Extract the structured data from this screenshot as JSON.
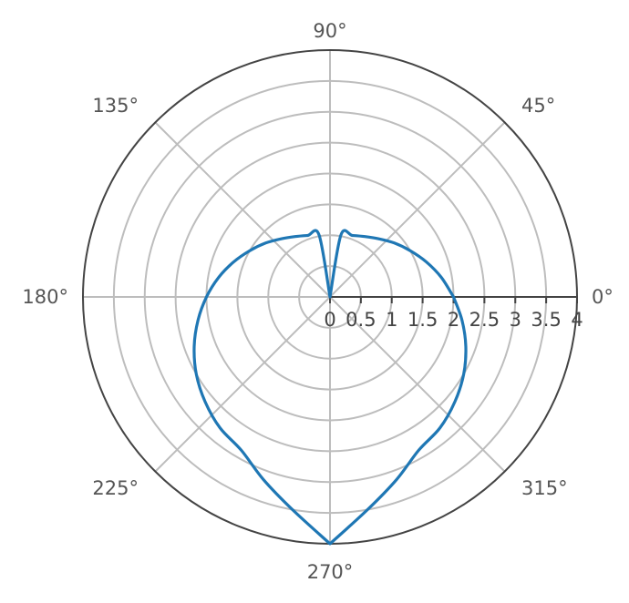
{
  "chart_data": {
    "type": "line",
    "projection": "polar",
    "angle_unit": "degrees",
    "angular_ticks": [
      {
        "angle": 0,
        "label": "0°"
      },
      {
        "angle": 45,
        "label": "45°"
      },
      {
        "angle": 90,
        "label": "90°"
      },
      {
        "angle": 135,
        "label": "135°"
      },
      {
        "angle": 180,
        "label": "180°"
      },
      {
        "angle": 225,
        "label": "225°"
      },
      {
        "angle": 270,
        "label": "270°"
      },
      {
        "angle": 315,
        "label": "315°"
      }
    ],
    "radial_ticks": [
      0,
      0.5,
      1,
      1.5,
      2,
      2.5,
      3,
      3.5,
      4
    ],
    "radial_tick_labels": [
      "0",
      "0.5",
      "1",
      "1.5",
      "2",
      "2.5",
      "3",
      "3.5",
      "4"
    ],
    "rlim": [
      0,
      4
    ],
    "grid": true,
    "legend": false,
    "series": [
      {
        "color": "#1f77b4",
        "theta": [
          0,
          10,
          20,
          30,
          40,
          50,
          60,
          70,
          80,
          90,
          100,
          110,
          120,
          130,
          140,
          150,
          160,
          170,
          180,
          190,
          200,
          210,
          220,
          230,
          240,
          250,
          260,
          270,
          280,
          290,
          300,
          310,
          320,
          330,
          340,
          350,
          360
        ],
        "r": [
          2.0,
          1.83,
          1.66,
          1.5,
          1.36,
          1.23,
          1.13,
          1.06,
          1.02,
          0.0,
          1.02,
          1.06,
          1.13,
          1.23,
          1.36,
          1.5,
          1.66,
          1.83,
          2.0,
          2.17,
          2.34,
          2.5,
          2.64,
          2.77,
          2.87,
          3.15,
          3.5,
          4.0,
          3.5,
          3.15,
          2.87,
          2.77,
          2.64,
          2.5,
          2.34,
          2.17,
          2.0
        ]
      }
    ]
  }
}
